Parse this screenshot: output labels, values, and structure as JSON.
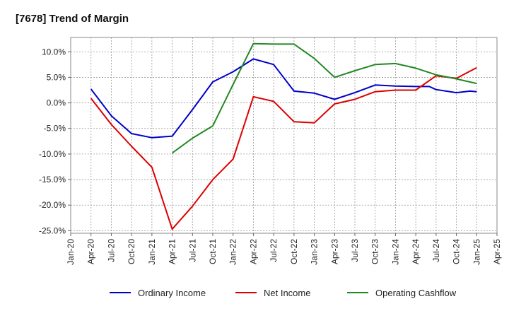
{
  "chart_data": {
    "type": "line",
    "title": "[7678]  Trend of Margin",
    "xlabel": "",
    "ylabel": "",
    "x_ticks": [
      "Jan-20",
      "Apr-20",
      "Jul-20",
      "Oct-20",
      "Jan-21",
      "Apr-21",
      "Jul-21",
      "Oct-21",
      "Jan-22",
      "Apr-22",
      "Jul-22",
      "Oct-22",
      "Jan-23",
      "Apr-23",
      "Jul-23",
      "Oct-23",
      "Jan-24",
      "Apr-24",
      "Jul-24",
      "Oct-24",
      "Jan-25",
      "Apr-25"
    ],
    "y_ticks": [
      10,
      5,
      0,
      -5,
      -10,
      -15,
      -20,
      -25
    ],
    "y_tick_labels": [
      "10.0%",
      "5.0%",
      "0.0%",
      "-5.0%",
      "-10.0%",
      "-15.0%",
      "-20.0%",
      "-25.0%"
    ],
    "ylim": [
      -25.5,
      12.8
    ],
    "grid": true,
    "legend_position": "bottom",
    "series": [
      {
        "name": "Ordinary Income",
        "color": "#0000cc",
        "x": [
          "Apr-20",
          "Jul-20",
          "Oct-20",
          "Jan-21",
          "Apr-21",
          "Jul-21",
          "Oct-21",
          "Jan-22",
          "Apr-22",
          "Jul-22",
          "Oct-22",
          "Jan-23",
          "Apr-23",
          "Jul-23",
          "Oct-23",
          "Jan-24",
          "Apr-24",
          "Jun-24",
          "Jul-24",
          "Oct-24",
          "Dec-24",
          "Jan-25"
        ],
        "values": [
          2.7,
          -2.5,
          -6.0,
          -6.8,
          -6.5,
          -1.3,
          4.1,
          6.1,
          8.6,
          7.5,
          2.3,
          1.9,
          0.7,
          2.0,
          3.5,
          3.3,
          3.2,
          3.2,
          2.6,
          2.0,
          2.3,
          2.2
        ]
      },
      {
        "name": "Net Income",
        "color": "#dd0000",
        "x": [
          "Apr-20",
          "Jul-20",
          "Oct-20",
          "Jan-21",
          "Apr-21",
          "Jul-21",
          "Oct-21",
          "Jan-22",
          "Apr-22",
          "Jul-22",
          "Oct-22",
          "Jan-23",
          "Apr-23",
          "Jul-23",
          "Oct-23",
          "Jan-24",
          "Apr-24",
          "Jul-24",
          "Oct-24",
          "Dec-24",
          "Jan-25"
        ],
        "values": [
          0.9,
          -4.2,
          -8.5,
          -12.6,
          -24.7,
          -20.2,
          -15.0,
          -11.0,
          1.2,
          0.3,
          -3.7,
          -3.9,
          -0.2,
          0.7,
          2.2,
          2.5,
          2.5,
          5.3,
          4.8,
          6.2,
          6.9
        ]
      },
      {
        "name": "Operating Cashflow",
        "color": "#228822",
        "x": [
          "Apr-21",
          "Jul-21",
          "Oct-21",
          "Jan-22",
          "Apr-22",
          "Jul-22",
          "Oct-22",
          "Jan-23",
          "Apr-23",
          "Jul-23",
          "Oct-23",
          "Jan-24",
          "Apr-24",
          "Jul-24",
          "Oct-24",
          "Jan-25"
        ],
        "values": [
          -9.8,
          -6.9,
          -4.5,
          3.6,
          11.6,
          11.5,
          11.5,
          8.7,
          5.0,
          6.3,
          7.5,
          7.7,
          6.8,
          5.5,
          4.7,
          3.8
        ]
      }
    ]
  }
}
